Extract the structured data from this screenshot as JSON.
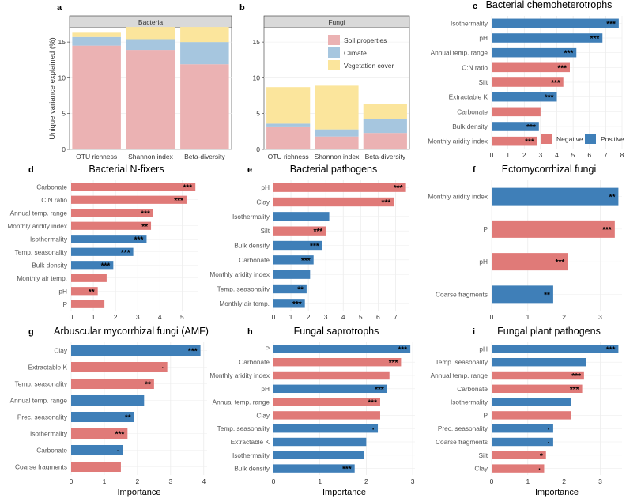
{
  "colors": {
    "negative": "#e07a78",
    "positive": "#3f7fb8",
    "soil": "#ebb2b3",
    "climate": "#a6c6df",
    "vegetation": "#fbe59c"
  },
  "stacked": {
    "ylabel": "Unique variance explained (%)",
    "legend": [
      "Soil properties",
      "Climate",
      "Vegetation cover"
    ],
    "yticks": [
      0,
      5,
      10,
      15
    ],
    "panels": [
      {
        "chart_data": {
          "letter": "a",
          "type": "bar",
          "stacked": true,
          "title": "Bacteria",
          "categories": [
            "OTU richness",
            "Shannon index",
            "Beta-diversity"
          ],
          "series": [
            {
              "name": "Soil properties",
              "values": [
                14.5,
                13.9,
                11.9
              ]
            },
            {
              "name": "Climate",
              "values": [
                1.2,
                1.5,
                3.1
              ]
            },
            {
              "name": "Vegetation cover",
              "values": [
                0.6,
                1.7,
                2.1
              ]
            }
          ],
          "ylim": [
            0,
            17
          ]
        }
      },
      {
        "chart_data": {
          "letter": "b",
          "type": "bar",
          "stacked": true,
          "title": "Fungi",
          "categories": [
            "OTU richness",
            "Shannon index",
            "Beta-diversity"
          ],
          "series": [
            {
              "name": "Soil properties",
              "values": [
                3.1,
                1.8,
                2.3
              ]
            },
            {
              "name": "Climate",
              "values": [
                0.5,
                1.0,
                2.0
              ]
            },
            {
              "name": "Vegetation cover",
              "values": [
                5.1,
                6.1,
                2.1
              ]
            }
          ],
          "ylim": [
            0,
            17
          ]
        }
      }
    ]
  },
  "importance": {
    "xlabel": "Importance",
    "legend": {
      "negative": "Negative",
      "positive": "Positive"
    },
    "panels": [
      {
        "chart_data": {
          "letter": "c",
          "type": "bar",
          "orientation": "horizontal",
          "title": "Bacterial chemoheterotrophs",
          "xlim": [
            0,
            8
          ],
          "xticks": [
            0,
            1,
            2,
            3,
            4,
            5,
            6,
            7,
            8
          ],
          "categories": [
            "Isothermality",
            "pH",
            "Annual temp. range",
            "C:N ratio",
            "Silt",
            "Extractable K",
            "Carbonate",
            "Bulk density",
            "Monthly aridity index"
          ],
          "values": [
            7.8,
            6.8,
            5.2,
            4.8,
            4.4,
            4.0,
            3.0,
            2.9,
            2.8
          ],
          "signs": [
            "+",
            "+",
            "+",
            "-",
            "-",
            "+",
            "-",
            "+",
            "-"
          ],
          "labels": [
            "***",
            "***",
            "***",
            "***",
            "***",
            "***",
            "",
            "***",
            "***"
          ]
        }
      },
      {
        "chart_data": {
          "letter": "d",
          "type": "bar",
          "orientation": "horizontal",
          "title": "Bacterial N-fixers",
          "xlim": [
            0,
            5.7
          ],
          "xticks": [
            0,
            1,
            2,
            3,
            4,
            5
          ],
          "categories": [
            "Carbonate",
            "C:N ratio",
            "Annual temp. range",
            "Monthly aridity index",
            "Isothermality",
            "Temp. seasonality",
            "Bulk density",
            "Monthly air temp.",
            "pH",
            "P"
          ],
          "values": [
            5.6,
            5.2,
            3.7,
            3.6,
            3.4,
            2.8,
            1.9,
            1.6,
            1.2,
            1.5
          ],
          "signs": [
            "-",
            "-",
            "-",
            "-",
            "+",
            "+",
            "+",
            "-",
            "-",
            "-"
          ],
          "labels": [
            "***",
            "***",
            "***",
            "**",
            "***",
            "***",
            "***",
            "",
            "**",
            ""
          ]
        }
      },
      {
        "chart_data": {
          "letter": "e",
          "type": "bar",
          "orientation": "horizontal",
          "title": "Bacterial pathogens",
          "xlim": [
            0,
            7.8
          ],
          "xticks": [
            0,
            1,
            2,
            3,
            4,
            5,
            6,
            7
          ],
          "categories": [
            "pH",
            "Clay",
            "Isothermality",
            "Silt",
            "Bulk density",
            "Carbonate",
            "Monthly aridity index",
            "Temp. seasonality",
            "Monthly air temp."
          ],
          "values": [
            7.6,
            6.9,
            3.2,
            3.0,
            2.8,
            2.3,
            2.1,
            1.9,
            1.8
          ],
          "signs": [
            "-",
            "-",
            "+",
            "-",
            "+",
            "+",
            "+",
            "+",
            "+"
          ],
          "labels": [
            "***",
            "***",
            "",
            "***",
            "***",
            "***",
            "",
            "**",
            "***"
          ]
        }
      },
      {
        "chart_data": {
          "letter": "f",
          "type": "bar",
          "orientation": "horizontal",
          "title": "Ectomycorrhizal fungi",
          "xlim": [
            0,
            3.6
          ],
          "xticks": [
            0,
            1,
            2,
            3
          ],
          "categories": [
            "Monthly aridity index",
            "P",
            "pH",
            "Coarse fragments"
          ],
          "values": [
            3.5,
            3.4,
            2.1,
            1.7
          ],
          "signs": [
            "+",
            "-",
            "-",
            "+"
          ],
          "labels": [
            "**",
            "***",
            "***",
            "**"
          ]
        }
      },
      {
        "chart_data": {
          "letter": "g",
          "type": "bar",
          "orientation": "horizontal",
          "title": "Arbuscular mycorrhizal fungi (AMF)",
          "xlim": [
            0,
            4.1
          ],
          "xticks": [
            0,
            1,
            2,
            3,
            4
          ],
          "categories": [
            "Clay",
            "Extractable K",
            "Temp. seasonality",
            "Annual temp. range",
            "Prec. seasonality",
            "Isothermality",
            "Carbonate",
            "Coarse fragments"
          ],
          "values": [
            3.9,
            2.9,
            2.5,
            2.2,
            1.9,
            1.7,
            1.55,
            1.5
          ],
          "signs": [
            "+",
            "-",
            "-",
            "+",
            "+",
            "-",
            "+",
            "-"
          ],
          "labels": [
            "***",
            "·",
            "**",
            "",
            "**",
            "***",
            "·",
            ""
          ]
        }
      },
      {
        "chart_data": {
          "letter": "h",
          "type": "bar",
          "orientation": "horizontal",
          "title": "Fungal saprotrophs",
          "xlim": [
            0,
            3.05
          ],
          "xticks": [
            0,
            1,
            2,
            3
          ],
          "categories": [
            "P",
            "Carbonate",
            "Monthly aridity index",
            "pH",
            "Annual temp. range",
            "Clay",
            "Temp. seasonality",
            "Extractable K",
            "Isothermality",
            "Bulk density"
          ],
          "values": [
            2.95,
            2.75,
            2.5,
            2.45,
            2.3,
            2.3,
            2.25,
            2.0,
            1.95,
            1.75
          ],
          "signs": [
            "+",
            "-",
            "-",
            "+",
            "-",
            "-",
            "+",
            "+",
            "+",
            "+"
          ],
          "labels": [
            "***",
            "***",
            "",
            "***",
            "***",
            "",
            "·",
            "",
            "",
            "***"
          ]
        }
      },
      {
        "chart_data": {
          "letter": "i",
          "type": "bar",
          "orientation": "horizontal",
          "title": "Fungal plant pathogens",
          "xlim": [
            0,
            3.6
          ],
          "xticks": [
            0,
            1,
            2,
            3
          ],
          "categories": [
            "pH",
            "Temp. seasonality",
            "Annual temp. range",
            "Carbonate",
            "Isothermality",
            "P",
            "Prec. seasonality",
            "Coarse fragments",
            "Silt",
            "Clay"
          ],
          "values": [
            3.5,
            2.6,
            2.55,
            2.5,
            2.2,
            2.2,
            1.7,
            1.7,
            1.5,
            1.45
          ],
          "signs": [
            "+",
            "+",
            "-",
            "-",
            "+",
            "-",
            "+",
            "+",
            "-",
            "-"
          ],
          "labels": [
            "***",
            "",
            "***",
            "***",
            "",
            "",
            "·",
            "·",
            "*",
            "·"
          ]
        }
      }
    ]
  }
}
